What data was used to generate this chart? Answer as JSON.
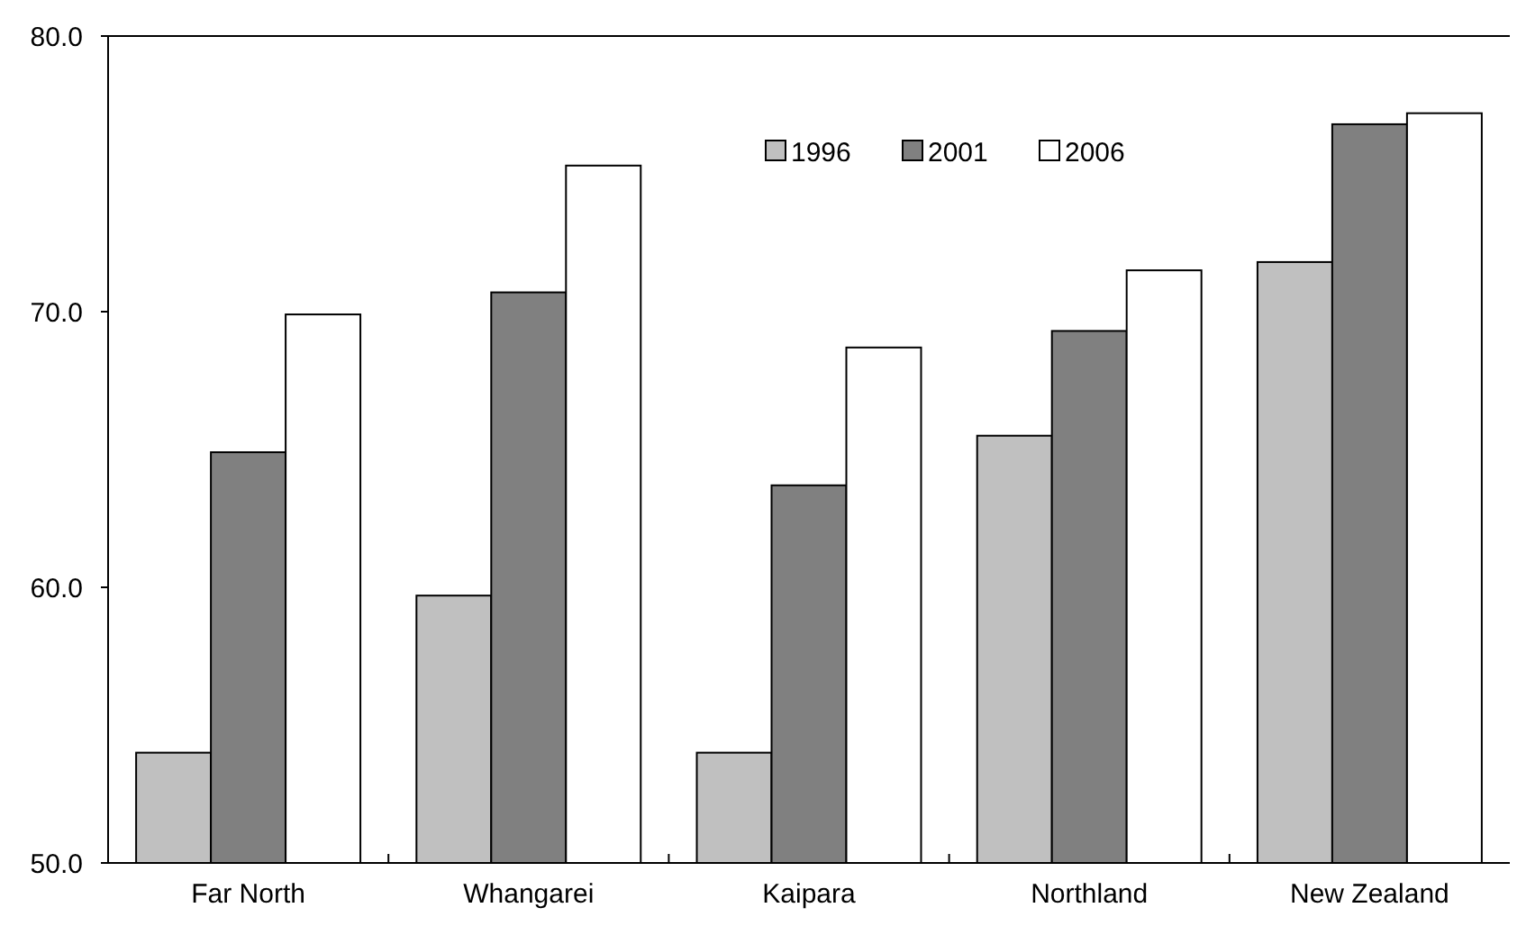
{
  "chart_data": {
    "type": "bar",
    "categories": [
      "Far North",
      "Whangarei",
      "Kaipara",
      "Northland",
      "New Zealand"
    ],
    "series": [
      {
        "name": "1996",
        "color": "#c0c0c0",
        "values": [
          54.0,
          59.7,
          54.0,
          65.5,
          71.8
        ]
      },
      {
        "name": "2001",
        "color": "#808080",
        "values": [
          64.9,
          70.7,
          63.7,
          69.3,
          76.8
        ]
      },
      {
        "name": "2006",
        "color": "#ffffff",
        "values": [
          69.9,
          75.3,
          68.7,
          71.5,
          77.2
        ]
      }
    ],
    "ylim": [
      50,
      80
    ],
    "yticks": [
      {
        "value": 50,
        "label": "50.0"
      },
      {
        "value": 60,
        "label": "60.0"
      },
      {
        "value": 70,
        "label": "70.0"
      },
      {
        "value": 80,
        "label": "80.0"
      }
    ],
    "grid": false,
    "legend": "top"
  }
}
